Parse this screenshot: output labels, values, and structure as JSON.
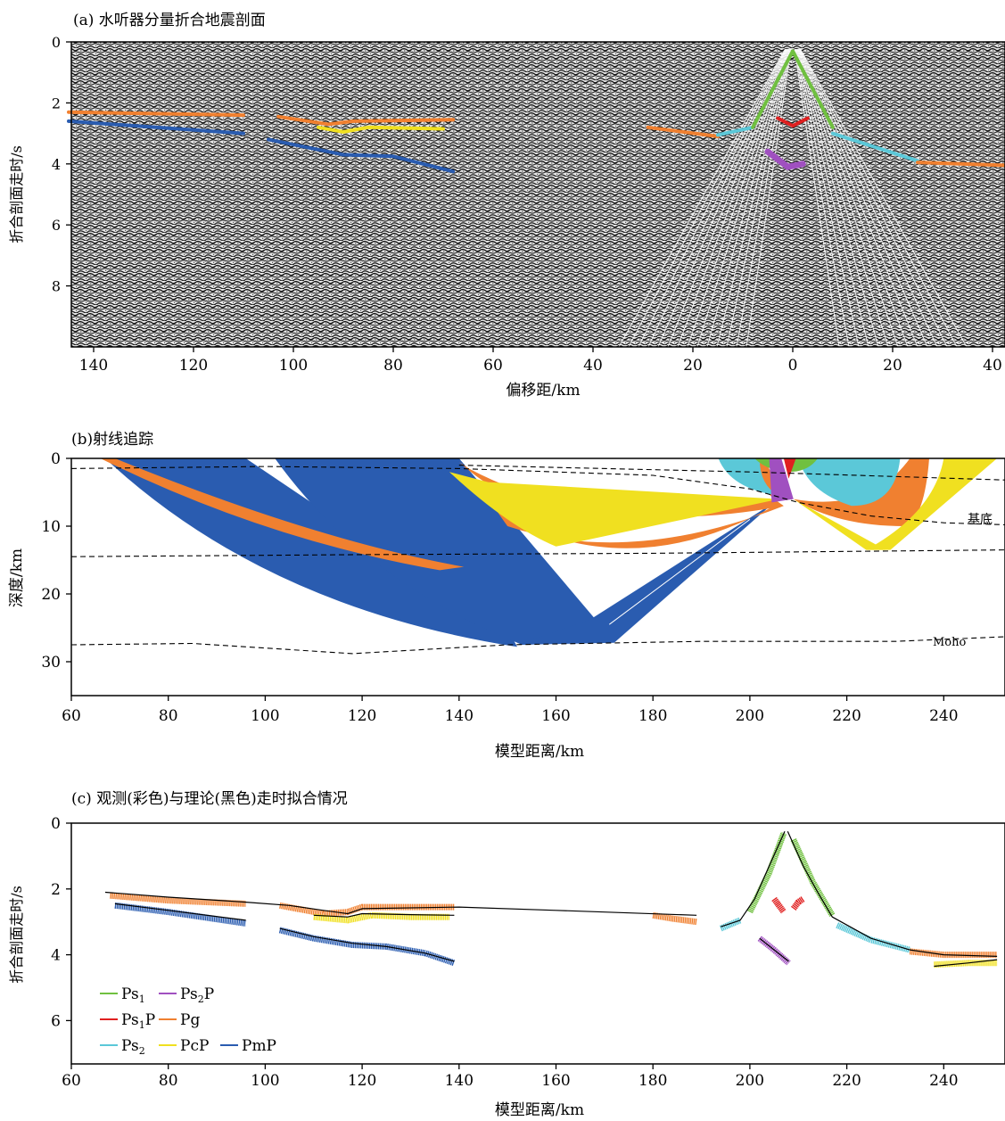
{
  "chart_data": [
    {
      "type": "image",
      "title": "(a) 水听器分量折合地震剖面",
      "xlabel": "偏移距/km",
      "ylabel": "折合剖面走时/s",
      "ylim": [
        0,
        10
      ],
      "y_ticks": [
        "0",
        "2",
        "4",
        "6",
        "8"
      ],
      "x_ticks": [
        "140",
        "120",
        "100",
        "80",
        "60",
        "40",
        "20",
        "0",
        "20",
        "40"
      ],
      "x_ticks_offset_km": [
        -140,
        -120,
        -100,
        -80,
        -60,
        -40,
        -20,
        0,
        20,
        40
      ],
      "picks": [
        {
          "name": "Pg",
          "color": "#f08030",
          "points": [
            [
              -145,
              2.3
            ],
            [
              -110,
              2.4
            ]
          ]
        },
        {
          "name": "PmP",
          "color": "#2a5cb0",
          "points": [
            [
              -145,
              2.6
            ],
            [
              -110,
              3.0
            ]
          ]
        },
        {
          "name": "Pg",
          "color": "#f08030",
          "points": [
            [
              -103,
              2.45
            ],
            [
              -93,
              2.7
            ],
            [
              -88,
              2.6
            ],
            [
              -68,
              2.55
            ]
          ]
        },
        {
          "name": "PcP",
          "color": "#f0e020",
          "points": [
            [
              -95,
              2.8
            ],
            [
              -90,
              2.95
            ],
            [
              -85,
              2.8
            ],
            [
              -70,
              2.85
            ]
          ]
        },
        {
          "name": "PmP",
          "color": "#2a5cb0",
          "points": [
            [
              -105,
              3.2
            ],
            [
              -90,
              3.7
            ],
            [
              -80,
              3.75
            ],
            [
              -68,
              4.25
            ]
          ]
        },
        {
          "name": "Pg",
          "color": "#f08030",
          "points": [
            [
              -29,
              2.8
            ],
            [
              -15,
              3.1
            ]
          ]
        },
        {
          "name": "Ps2",
          "color": "#5bc8d8",
          "points": [
            [
              -15,
              3.05
            ],
            [
              -8,
              2.8
            ]
          ]
        },
        {
          "name": "Ps1",
          "color": "#70c040",
          "points": [
            [
              -8,
              2.8
            ],
            [
              0,
              0.3
            ],
            [
              8,
              2.8
            ]
          ]
        },
        {
          "name": "Ps1P",
          "color": "#e02020",
          "points": [
            [
              -3,
              2.5
            ],
            [
              0,
              2.75
            ],
            [
              3,
              2.5
            ]
          ]
        },
        {
          "name": "Ps2P",
          "color": "#a050c0",
          "points": [
            [
              -5,
              3.6
            ],
            [
              -1,
              4.1
            ],
            [
              2,
              4.0
            ]
          ]
        },
        {
          "name": "Ps2",
          "color": "#5bc8d8",
          "points": [
            [
              8,
              3.0
            ],
            [
              25,
              3.9
            ]
          ]
        },
        {
          "name": "Pg",
          "color": "#f08030",
          "points": [
            [
              25,
              3.95
            ],
            [
              43,
              4.05
            ]
          ]
        }
      ]
    },
    {
      "type": "ray-tracing",
      "title": "(b)射线追踪",
      "xlabel": "模型距离/km",
      "ylabel": "深度/km",
      "xlim": [
        60,
        253
      ],
      "ylim": [
        0,
        35
      ],
      "x_ticks": [
        "60",
        "80",
        "100",
        "120",
        "140",
        "160",
        "180",
        "200",
        "220",
        "240"
      ],
      "y_ticks": [
        "0",
        "10",
        "20",
        "30"
      ],
      "annotations": [
        "基底",
        "Moho"
      ],
      "interfaces": [
        {
          "name": "基底",
          "points": [
            [
              60,
              1.5
            ],
            [
              100,
              1.2
            ],
            [
              140,
              1.5
            ],
            [
              180,
              2.5
            ],
            [
              200,
              4.5
            ],
            [
              210,
              6.5
            ],
            [
              225,
              8.5
            ],
            [
              240,
              9.5
            ],
            [
              253,
              9.8
            ]
          ]
        },
        {
          "name": "upper-crust",
          "points": [
            [
              60,
              14.5
            ],
            [
              120,
              14.2
            ],
            [
              180,
              14.0
            ],
            [
              253,
              13.5
            ]
          ]
        },
        {
          "name": "Moho",
          "points": [
            [
              60,
              27.5
            ],
            [
              85,
              27.3
            ],
            [
              118,
              28.8
            ],
            [
              150,
              27.5
            ],
            [
              190,
              27.0
            ],
            [
              230,
              27.0
            ],
            [
              253,
              26.3
            ]
          ]
        },
        {
          "name": "upper-interface",
          "points": [
            [
              140,
              1.0
            ],
            [
              200,
              2.0
            ],
            [
              253,
              3.2
            ]
          ]
        }
      ],
      "phases_colors": {
        "Ps1": "#70c040",
        "Ps1P": "#e02020",
        "Ps2": "#5bc8d8",
        "PcP": "#f0e020",
        "Ps2P": "#a050c0",
        "Pg": "#f08030",
        "PmP": "#2a5cb0"
      }
    },
    {
      "type": "line",
      "title": "(c) 观测(彩色)与理论(黑色)走时拟合情况",
      "xlabel": "模型距离/km",
      "ylabel": "折合剖面走时/s",
      "xlim": [
        60,
        253
      ],
      "ylim": [
        0,
        7.3
      ],
      "x_ticks": [
        "60",
        "80",
        "100",
        "120",
        "140",
        "160",
        "180",
        "200",
        "220",
        "240"
      ],
      "y_ticks": [
        "0",
        "2",
        "4",
        "6"
      ],
      "legend": {
        "position": "bottom-left",
        "entries": [
          {
            "label": "Ps",
            "sub": "1",
            "suffix": "",
            "color": "#70c040"
          },
          {
            "label": "Ps",
            "sub": "2",
            "suffix": "P",
            "color": "#a050c0"
          },
          {
            "label": "Ps",
            "sub": "1",
            "suffix": "P",
            "color": "#e02020"
          },
          {
            "label": "Pg",
            "sub": "",
            "suffix": "",
            "color": "#f08030"
          },
          {
            "label": "Ps",
            "sub": "2",
            "suffix": "",
            "color": "#5bc8d8"
          },
          {
            "label": "PcP",
            "sub": "",
            "suffix": "",
            "color": "#f0e020"
          },
          {
            "label": "PmP",
            "sub": "",
            "suffix": "",
            "color": "#2a5cb0"
          }
        ]
      },
      "observed": [
        {
          "name": "Pg",
          "color": "#f08030",
          "x": [
            68,
            80,
            96
          ],
          "y": [
            2.2,
            2.35,
            2.45
          ]
        },
        {
          "name": "Pg",
          "color": "#f08030",
          "x": [
            103,
            112,
            117,
            120,
            130,
            139
          ],
          "y": [
            2.5,
            2.75,
            2.7,
            2.55,
            2.55,
            2.55
          ]
        },
        {
          "name": "PcP",
          "color": "#f0e020",
          "x": [
            110,
            117,
            122,
            130,
            138
          ],
          "y": [
            2.85,
            2.95,
            2.8,
            2.85,
            2.85
          ]
        },
        {
          "name": "PmP",
          "color": "#2a5cb0",
          "x": [
            69,
            80,
            96
          ],
          "y": [
            2.5,
            2.7,
            3.05
          ]
        },
        {
          "name": "PmP",
          "color": "#2a5cb0",
          "x": [
            103,
            110,
            118,
            125,
            133,
            139
          ],
          "y": [
            3.25,
            3.5,
            3.7,
            3.75,
            3.95,
            4.25
          ]
        },
        {
          "name": "Pg",
          "color": "#f08030",
          "x": [
            180,
            184,
            189
          ],
          "y": [
            2.8,
            2.9,
            3.0
          ]
        },
        {
          "name": "Ps2",
          "color": "#5bc8d8",
          "x": [
            194,
            198
          ],
          "y": [
            3.2,
            2.95
          ]
        },
        {
          "name": "Ps1",
          "color": "#70c040",
          "x": [
            200,
            204,
            207
          ],
          "y": [
            2.7,
            1.5,
            0.3
          ]
        },
        {
          "name": "Ps1",
          "color": "#70c040",
          "x": [
            209,
            213,
            217
          ],
          "y": [
            0.5,
            1.8,
            2.8
          ]
        },
        {
          "name": "Ps1P",
          "color": "#e02020",
          "x": [
            205,
            206,
            207
          ],
          "y": [
            2.3,
            2.5,
            2.7
          ]
        },
        {
          "name": "Ps1P",
          "color": "#e02020",
          "x": [
            209,
            210,
            211
          ],
          "y": [
            2.6,
            2.4,
            2.3
          ]
        },
        {
          "name": "Ps2P",
          "color": "#a050c0",
          "x": [
            202,
            205,
            208
          ],
          "y": [
            3.5,
            3.85,
            4.25
          ]
        },
        {
          "name": "Ps2",
          "color": "#5bc8d8",
          "x": [
            218,
            225,
            233
          ],
          "y": [
            3.1,
            3.55,
            3.85
          ]
        },
        {
          "name": "Pg",
          "color": "#f08030",
          "x": [
            233,
            240,
            251
          ],
          "y": [
            3.9,
            4.0,
            4.0
          ]
        },
        {
          "name": "PcP",
          "color": "#f0e020",
          "x": [
            238,
            245,
            251
          ],
          "y": [
            4.3,
            4.25,
            4.25
          ]
        }
      ],
      "theoretical": [
        {
          "x": [
            67,
            80,
            96,
            105,
            112,
            117,
            120,
            140,
            160,
            189
          ],
          "y": [
            2.1,
            2.25,
            2.4,
            2.5,
            2.65,
            2.75,
            2.6,
            2.55,
            2.65,
            2.8
          ]
        },
        {
          "x": [
            110,
            117,
            120,
            130,
            139
          ],
          "y": [
            2.8,
            2.85,
            2.75,
            2.78,
            2.8
          ]
        },
        {
          "x": [
            69,
            80,
            96
          ],
          "y": [
            2.45,
            2.65,
            2.95
          ]
        },
        {
          "x": [
            103,
            110,
            118,
            125,
            133,
            139
          ],
          "y": [
            3.2,
            3.45,
            3.65,
            3.75,
            3.95,
            4.2
          ]
        },
        {
          "x": [
            194,
            198,
            201,
            204,
            207.2
          ],
          "y": [
            3.15,
            2.95,
            2.3,
            1.3,
            0.25
          ]
        },
        {
          "x": [
            207.8,
            211,
            214,
            217,
            225,
            233,
            240,
            251
          ],
          "y": [
            0.25,
            1.3,
            2.1,
            2.85,
            3.5,
            3.85,
            4.0,
            4.05
          ]
        },
        {
          "x": [
            202,
            205,
            208
          ],
          "y": [
            3.5,
            3.85,
            4.2
          ]
        },
        {
          "x": [
            238,
            245,
            251
          ],
          "y": [
            4.35,
            4.25,
            4.15
          ]
        }
      ]
    }
  ]
}
